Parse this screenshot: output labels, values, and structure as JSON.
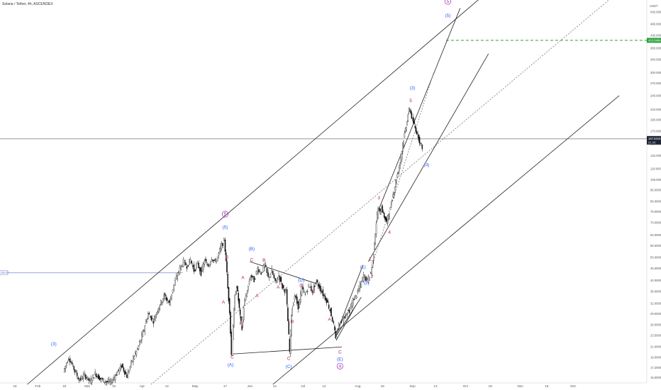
{
  "header": {
    "title": "Solana / Tether, 4h, ASCENDEX"
  },
  "axis": {
    "currency_top": "USDT",
    "scale_note": "%"
  },
  "price_badges": {
    "target": {
      "text": "410.0484",
      "color": "#2e9e3f"
    },
    "current": {
      "text": "157.8216",
      "sub": "01:40",
      "color": "#1e2433"
    },
    "left_marker": {
      "text": "43.07"
    }
  },
  "chart_data": {
    "type": "candlestick",
    "title": "Solana / Tether, 4h, ASCENDEX",
    "yscale": "log",
    "ylim": [
      14.8,
      640
    ],
    "y_ticks": [
      {
        "v": 15.6,
        "label": "15.6000"
      },
      {
        "v": 17.2,
        "label": "17.2000"
      },
      {
        "v": 19.0,
        "label": "19.0000"
      },
      {
        "v": 21.0,
        "label": "21.0000"
      },
      {
        "v": 23.5,
        "label": "23.5000"
      },
      {
        "v": 26.0,
        "label": "26.0000"
      },
      {
        "v": 29.0,
        "label": "29.0000"
      },
      {
        "v": 32.0,
        "label": "32.0000"
      },
      {
        "v": 36.0,
        "label": "36.0000"
      },
      {
        "v": 40.0,
        "label": "40.0000"
      },
      {
        "v": 45.0,
        "label": "45.0000"
      },
      {
        "v": 50.0,
        "label": "50.0000"
      },
      {
        "v": 56.0,
        "label": "56.0000"
      },
      {
        "v": 62.0,
        "label": "62.0000"
      },
      {
        "v": 70.0,
        "label": "70.0000"
      },
      {
        "v": 78.0,
        "label": "78.0000"
      },
      {
        "v": 86.0,
        "label": "86.0000"
      },
      {
        "v": 96.0,
        "label": "96.0000"
      },
      {
        "v": 106.0,
        "label": "106.0000"
      },
      {
        "v": 118.0,
        "label": "118.0000"
      },
      {
        "v": 134.0,
        "label": "134.0000"
      },
      {
        "v": 150.0,
        "label": "150.0000"
      },
      {
        "v": 170.0,
        "label": "170.0000"
      },
      {
        "v": 190.0,
        "label": "190.0000"
      },
      {
        "v": 210.0,
        "label": "210.0000"
      },
      {
        "v": 240.0,
        "label": "240.0000"
      },
      {
        "v": 270.0,
        "label": "270.0000"
      },
      {
        "v": 300.0,
        "label": "300.0000"
      },
      {
        "v": 340.0,
        "label": "340.0000"
      },
      {
        "v": 380.0,
        "label": "380.0000"
      },
      {
        "v": 430.0,
        "label": "430.0000"
      },
      {
        "v": 480.0,
        "label": "480.0000"
      },
      {
        "v": 540.0,
        "label": "540.0000"
      }
    ],
    "x_ticks": [
      {
        "t": 18,
        "label": "18"
      },
      {
        "t": 31,
        "label": "Feb"
      },
      {
        "t": 46,
        "label": "15"
      },
      {
        "t": 59,
        "label": "Mar"
      },
      {
        "t": 74,
        "label": "15"
      },
      {
        "t": 90,
        "label": "Apr"
      },
      {
        "t": 104,
        "label": "12"
      },
      {
        "t": 120,
        "label": "May"
      },
      {
        "t": 137,
        "label": "17"
      },
      {
        "t": 151,
        "label": "Jun"
      },
      {
        "t": 165,
        "label": "14"
      },
      {
        "t": 181,
        "label": "Jul"
      },
      {
        "t": 193,
        "label": "12"
      },
      {
        "t": 212,
        "label": "Aug"
      },
      {
        "t": 226,
        "label": "16"
      },
      {
        "t": 243,
        "label": "Sep"
      },
      {
        "t": 256,
        "label": "13"
      },
      {
        "t": 273,
        "label": "Oct"
      },
      {
        "t": 287,
        "label": "18"
      },
      {
        "t": 304,
        "label": "Nov"
      },
      {
        "t": 319,
        "label": "15"
      },
      {
        "t": 334,
        "label": "Dec"
      }
    ],
    "price_path": [
      [
        46,
        16.5
      ],
      [
        49,
        19.0
      ],
      [
        52,
        17.0
      ],
      [
        55,
        15.2
      ],
      [
        58,
        16.0
      ],
      [
        61,
        15.0
      ],
      [
        64,
        16.2
      ],
      [
        67,
        15.4
      ],
      [
        70,
        15.0
      ],
      [
        73,
        14.9
      ],
      [
        76,
        16.2
      ],
      [
        79,
        17.5
      ],
      [
        82,
        15.8
      ],
      [
        85,
        18.5
      ],
      [
        88,
        20.5
      ],
      [
        91,
        24.0
      ],
      [
        94,
        29.0
      ],
      [
        97,
        27.0
      ],
      [
        100,
        31.0
      ],
      [
        103,
        34.5
      ],
      [
        106,
        32.0
      ],
      [
        108,
        37.0
      ],
      [
        110,
        41.0
      ],
      [
        112,
        45.0
      ],
      [
        114,
        48.0
      ],
      [
        116,
        46.0
      ],
      [
        118,
        49.0
      ],
      [
        120,
        44.0
      ],
      [
        122,
        47.0
      ],
      [
        124,
        43.0
      ],
      [
        126,
        48.5
      ],
      [
        128,
        46.0
      ],
      [
        130,
        50.0
      ],
      [
        132,
        47.5
      ],
      [
        134,
        52.0
      ],
      [
        135,
        55.0
      ],
      [
        137,
        58.5
      ],
      [
        138,
        49.0
      ],
      [
        139,
        37.0
      ],
      [
        140,
        30.0
      ],
      [
        141,
        19.5
      ],
      [
        142,
        26.0
      ],
      [
        143,
        34.0
      ],
      [
        144,
        38.0
      ],
      [
        145,
        33.0
      ],
      [
        146,
        28.0
      ],
      [
        147,
        25.0
      ],
      [
        148,
        31.0
      ],
      [
        150,
        36.0
      ],
      [
        152,
        42.0
      ],
      [
        154,
        40.0
      ],
      [
        156,
        45.0
      ],
      [
        158,
        43.0
      ],
      [
        160,
        46.5
      ],
      [
        162,
        41.0
      ],
      [
        164,
        44.0
      ],
      [
        166,
        39.0
      ],
      [
        168,
        42.0
      ],
      [
        170,
        37.5
      ],
      [
        172,
        36.0
      ],
      [
        173,
        27.0
      ],
      [
        174,
        20.0
      ],
      [
        175,
        29.0
      ],
      [
        177,
        34.5
      ],
      [
        179,
        31.0
      ],
      [
        181,
        37.0
      ],
      [
        183,
        35.0
      ],
      [
        185,
        38.0
      ],
      [
        187,
        36.0
      ],
      [
        189,
        39.5
      ],
      [
        191,
        37.5
      ],
      [
        193,
        35.0
      ],
      [
        195,
        33.0
      ],
      [
        197,
        30.0
      ],
      [
        199,
        26.0
      ],
      [
        200,
        22.5
      ],
      [
        202,
        26.0
      ],
      [
        204,
        27.5
      ],
      [
        206,
        29.0
      ],
      [
        208,
        30.0
      ],
      [
        210,
        33.0
      ],
      [
        212,
        35.0
      ],
      [
        214,
        38.0
      ],
      [
        216,
        42.0
      ],
      [
        218,
        40.0
      ],
      [
        220,
        43.0
      ],
      [
        221,
        48.0
      ],
      [
        222,
        58.0
      ],
      [
        223,
        70.0
      ],
      [
        224,
        80.0
      ],
      [
        225,
        77.0
      ],
      [
        226,
        82.0
      ],
      [
        227,
        76.0
      ],
      [
        228,
        73.0
      ],
      [
        229,
        70.0
      ],
      [
        230,
        76.0
      ],
      [
        231,
        80.0
      ],
      [
        232,
        89.0
      ],
      [
        233,
        95.0
      ],
      [
        234,
        104.0
      ],
      [
        235,
        112.0
      ],
      [
        236,
        120.0
      ],
      [
        237,
        132.0
      ],
      [
        238,
        150.0
      ],
      [
        239,
        165.0
      ],
      [
        240,
        180.0
      ],
      [
        241,
        200.0
      ],
      [
        242,
        212.0
      ],
      [
        243,
        195.0
      ],
      [
        244,
        185.0
      ],
      [
        245,
        175.0
      ],
      [
        246,
        168.0
      ],
      [
        247,
        160.0
      ],
      [
        248,
        150.0
      ],
      [
        249,
        146.0
      ]
    ],
    "annotations": [
      {
        "t": 40,
        "p": 21.3,
        "text": "(3)",
        "color": "#2962ff"
      },
      {
        "t": 137,
        "p": 66.0,
        "text": "(5)",
        "color": "#2962ff"
      },
      {
        "t": 137,
        "p": 75.0,
        "text": "5",
        "color": "#9c27b0",
        "circled": true
      },
      {
        "t": 138,
        "p": 49.5,
        "text": "B",
        "color": "#c2185b"
      },
      {
        "t": 136,
        "p": 32.0,
        "text": "A",
        "color": "#c2185b"
      },
      {
        "t": 141,
        "p": 18.8,
        "text": "C",
        "color": "#c2185b"
      },
      {
        "t": 140,
        "p": 17.4,
        "text": "(A)",
        "color": "#2962ff"
      },
      {
        "t": 146,
        "p": 26.0,
        "text": "B",
        "color": "#c2185b"
      },
      {
        "t": 147,
        "p": 40.5,
        "text": "A",
        "color": "#c2185b"
      },
      {
        "t": 152,
        "p": 53.5,
        "text": "(B)",
        "color": "#2962ff"
      },
      {
        "t": 152,
        "p": 48.2,
        "text": "C",
        "color": "#c2185b"
      },
      {
        "t": 159,
        "p": 48.0,
        "text": "B",
        "color": "#c2185b"
      },
      {
        "t": 155,
        "p": 34.0,
        "text": "A",
        "color": "#c2185b"
      },
      {
        "t": 167,
        "p": 37.0,
        "text": "A",
        "color": "#c2185b"
      },
      {
        "t": 175,
        "p": 26.5,
        "text": "B",
        "color": "#c2185b"
      },
      {
        "t": 173,
        "p": 18.5,
        "text": "C",
        "color": "#c2185b"
      },
      {
        "t": 173,
        "p": 17.1,
        "text": "(C)",
        "color": "#2962ff"
      },
      {
        "t": 180,
        "p": 39.6,
        "text": "(D)",
        "color": "#2962ff"
      },
      {
        "t": 180,
        "p": 37.6,
        "text": "C",
        "color": "#c2185b"
      },
      {
        "t": 187,
        "p": 35.5,
        "text": "B",
        "color": "#c2185b"
      },
      {
        "t": 196,
        "p": 27.0,
        "text": "A",
        "color": "#c2185b"
      },
      {
        "t": 202,
        "p": 19.7,
        "text": "C",
        "color": "#c2185b"
      },
      {
        "t": 202,
        "p": 18.4,
        "text": "(E)",
        "color": "#2962ff"
      },
      {
        "t": 202,
        "p": 17.2,
        "text": "4",
        "color": "#9c27b0",
        "circled": true
      },
      {
        "t": 215,
        "p": 45.0,
        "text": "(1)",
        "color": "#2962ff"
      },
      {
        "t": 219,
        "p": 48.5,
        "text": "1",
        "color": "#c2185b"
      },
      {
        "t": 217,
        "p": 38.5,
        "text": "(2)",
        "color": "#2962ff"
      },
      {
        "t": 220,
        "p": 41.0,
        "text": "2",
        "color": "#c2185b"
      },
      {
        "t": 224,
        "p": 88.0,
        "text": "3",
        "color": "#c2185b"
      },
      {
        "t": 230,
        "p": 63.0,
        "text": "4",
        "color": "#c2185b"
      },
      {
        "t": 243,
        "p": 255.0,
        "text": "(3)",
        "color": "#2962ff"
      },
      {
        "t": 242,
        "p": 225.0,
        "text": "5",
        "color": "#c2185b"
      },
      {
        "t": 251,
        "p": 121.0,
        "text": "(4)",
        "color": "#2962ff"
      },
      {
        "t": 263,
        "p": 515.0,
        "text": "(5)",
        "color": "#2962ff"
      },
      {
        "t": 263,
        "p": 590.0,
        "text": "5",
        "color": "#9c27b0",
        "circled": true
      }
    ],
    "lines": [
      {
        "t1": 25,
        "p1": 14.6,
        "t2": 290,
        "p2": 700,
        "style": "solid"
      },
      {
        "t1": 164,
        "p1": 14.6,
        "t2": 360,
        "p2": 240,
        "style": "solid"
      },
      {
        "t1": 95,
        "p1": 14.6,
        "t2": 360,
        "p2": 660,
        "style": "dotted"
      },
      {
        "t1": 224,
        "p1": 80,
        "t2": 270,
        "p2": 560,
        "style": "solid"
      },
      {
        "t1": 218,
        "p1": 48,
        "t2": 286,
        "p2": 360,
        "style": "solid"
      },
      {
        "t1": 220,
        "p1": 46,
        "t2": 255,
        "p2": 300,
        "style": "dotted"
      },
      {
        "t1": 141,
        "p1": 19.6,
        "t2": 203,
        "p2": 21.0,
        "style": "solid"
      },
      {
        "t1": 151,
        "p1": 48.0,
        "t2": 189,
        "p2": 38.7,
        "style": "solid"
      },
      {
        "t1": 200,
        "p1": 22.5,
        "t2": 211,
        "p2": 31.5,
        "style": "solid"
      },
      {
        "t1": 200,
        "p1": 24.0,
        "t2": 215,
        "p2": 46.5,
        "style": "solid"
      },
      {
        "t1": 200,
        "p1": 23.5,
        "t2": 214,
        "p2": 34.0,
        "style": "solid"
      }
    ],
    "hlines": [
      {
        "p": 157.8216,
        "color": "#888888",
        "style": "solid",
        "t_start": 0
      },
      {
        "p": 410.0484,
        "color": "#2e9e3f",
        "style": "dashed",
        "t_start": 262
      },
      {
        "p": 43.07,
        "color": "#7986cb",
        "style": "solid",
        "t_start": 0,
        "t_end": 113
      }
    ]
  }
}
